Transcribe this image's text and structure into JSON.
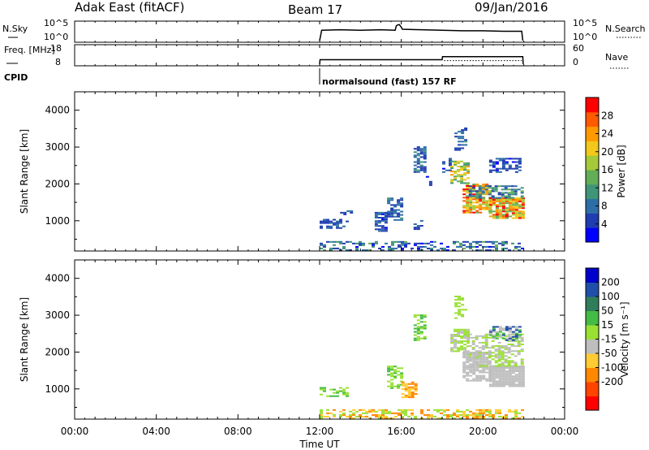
{
  "header": {
    "title": "Adak East (fitACF)",
    "beam": "Beam 17",
    "date": "09/Jan/2016"
  },
  "colors": {
    "background": "#ffffff",
    "axes": "#000000",
    "ground_scatter": "#bebebe"
  },
  "chart_data": [
    {
      "type": "line",
      "panel": "noise",
      "ylabel_left": "N.Sky",
      "ylabel_right": "N.Search",
      "yticks_left": [
        "10^5",
        "10^0"
      ],
      "yticks_right": [
        "10^5",
        "10^0"
      ],
      "x_hours": [
        12.0,
        12.1,
        13.0,
        14.0,
        15.0,
        15.7,
        15.75,
        15.8,
        15.9,
        16.0,
        16.05,
        17.0,
        18.0,
        19.0,
        20.0,
        21.0,
        21.9,
        21.95
      ],
      "y_log": [
        0.0,
        2.0,
        2.1,
        2.0,
        2.1,
        2.0,
        2.8,
        3.0,
        3.1,
        2.6,
        2.2,
        2.1,
        2.0,
        1.9,
        1.9,
        1.8,
        1.8,
        0.0
      ]
    },
    {
      "type": "line",
      "panel": "frequency",
      "ylabel_left": "Freq. [MHz]",
      "ylabel_right": "Nave",
      "yticks_left": [
        "18",
        "8"
      ],
      "yticks_right": [
        "60",
        "0"
      ],
      "freq_x_hours": [
        12.0,
        12.02,
        18.0,
        18.02,
        21.95,
        21.97
      ],
      "freq_mhz": [
        8,
        10.5,
        10.5,
        12.2,
        12.2,
        8
      ],
      "nave_x_hours": [
        18.1,
        21.9
      ],
      "nave": [
        12,
        12
      ]
    },
    {
      "type": "table",
      "panel": "cpid",
      "label": "CPID",
      "start_hour": 12.0,
      "program": "normalsound (fast) 157 RF"
    },
    {
      "type": "heatmap",
      "panel": "power",
      "xlabel": "",
      "ylabel": "Slant Range [km]",
      "xlim": [
        0,
        24
      ],
      "ylim": [
        180,
        4500
      ],
      "yticks": [
        1000,
        2000,
        3000,
        4000
      ],
      "colorbar_label": "Power [dB]",
      "colorbar_ticks": [
        4,
        8,
        12,
        16,
        20,
        24,
        28
      ],
      "colorbar_range": [
        0,
        32
      ],
      "colorbar_colors": [
        "#0000ff",
        "#1f3db0",
        "#2e6ea6",
        "#3f9577",
        "#62ad55",
        "#a6c93a",
        "#f2c81a",
        "#ff9900",
        "#ff5a00",
        "#ff0000"
      ],
      "regions": [
        {
          "t": [
            12.0,
            22.0
          ],
          "r": [
            180,
            420
          ],
          "v": [
            2,
            14
          ],
          "d": 0.45
        },
        {
          "t": [
            12.0,
            13.3
          ],
          "r": [
            780,
            1020
          ],
          "v": [
            3,
            8
          ],
          "d": 0.55
        },
        {
          "t": [
            13.0,
            13.6
          ],
          "r": [
            1150,
            1280
          ],
          "v": [
            3,
            8
          ],
          "d": 0.4
        },
        {
          "t": [
            14.7,
            15.3
          ],
          "r": [
            700,
            1200
          ],
          "v": [
            3,
            9
          ],
          "d": 0.6
        },
        {
          "t": [
            15.3,
            16.0
          ],
          "r": [
            1000,
            1600
          ],
          "v": [
            4,
            10
          ],
          "d": 0.6
        },
        {
          "t": [
            16.6,
            17.0
          ],
          "r": [
            750,
            1000
          ],
          "v": [
            3,
            9
          ],
          "d": 0.55
        },
        {
          "t": [
            16.6,
            17.2
          ],
          "r": [
            2300,
            3000
          ],
          "v": [
            3,
            12
          ],
          "d": 0.55
        },
        {
          "t": [
            17.2,
            17.5
          ],
          "r": [
            1900,
            2200
          ],
          "v": [
            3,
            8
          ],
          "d": 0.4
        },
        {
          "t": [
            18.0,
            18.4
          ],
          "r": [
            2300,
            2700
          ],
          "v": [
            3,
            8
          ],
          "d": 0.5
        },
        {
          "t": [
            18.4,
            19.3
          ],
          "r": [
            2000,
            2600
          ],
          "v": [
            10,
            24
          ],
          "d": 0.65
        },
        {
          "t": [
            19.0,
            20.3
          ],
          "r": [
            1200,
            2000
          ],
          "v": [
            14,
            30
          ],
          "d": 0.75
        },
        {
          "t": [
            20.3,
            22.0
          ],
          "r": [
            1050,
            1600
          ],
          "v": [
            14,
            30
          ],
          "d": 0.85
        },
        {
          "t": [
            19.3,
            22.0
          ],
          "r": [
            1600,
            1950
          ],
          "v": [
            4,
            14
          ],
          "d": 0.55
        },
        {
          "t": [
            18.6,
            19.2
          ],
          "r": [
            2900,
            3500
          ],
          "v": [
            4,
            10
          ],
          "d": 0.4
        },
        {
          "t": [
            20.3,
            21.8
          ],
          "r": [
            2300,
            2700
          ],
          "v": [
            3,
            8
          ],
          "d": 0.5
        }
      ]
    },
    {
      "type": "heatmap",
      "panel": "velocity",
      "xlabel": "Time UT",
      "ylabel": "Slant Range [km]",
      "xlim": [
        0,
        24
      ],
      "ylim": [
        180,
        4500
      ],
      "xticks": [
        "00:00",
        "04:00",
        "08:00",
        "12:00",
        "16:00",
        "20:00",
        "00:00"
      ],
      "yticks": [
        1000,
        2000,
        3000,
        4000
      ],
      "colorbar_label": "Velocity [m s⁻¹]",
      "colorbar_ticks": [
        "200",
        "100",
        "50",
        "15",
        "-15",
        "-50",
        "-100",
        "-200"
      ],
      "colorbar_colors": [
        "#ff0000",
        "#ff4400",
        "#ff8800",
        "#ffcc33",
        "#bebebe",
        "#99e033",
        "#44bb44",
        "#2f7d5a",
        "#1f4fa8",
        "#0000cc"
      ],
      "regions": [
        {
          "t": [
            12.0,
            22.0
          ],
          "r": [
            180,
            420
          ],
          "c": [
            "#ffcc33",
            "#ff8800",
            "#99e033"
          ],
          "d": 0.5
        },
        {
          "t": [
            12.0,
            13.3
          ],
          "r": [
            780,
            1020
          ],
          "c": [
            "#99e033",
            "#44bb44"
          ],
          "d": 0.5
        },
        {
          "t": [
            15.3,
            16.0
          ],
          "r": [
            1000,
            1600
          ],
          "c": [
            "#99e033",
            "#44bb44"
          ],
          "d": 0.5
        },
        {
          "t": [
            16.0,
            16.7
          ],
          "r": [
            750,
            1200
          ],
          "c": [
            "#ffcc33",
            "#ff8800"
          ],
          "d": 0.7
        },
        {
          "t": [
            16.6,
            17.2
          ],
          "r": [
            2300,
            3000
          ],
          "c": [
            "#99e033",
            "#44bb44"
          ],
          "d": 0.5
        },
        {
          "t": [
            18.4,
            19.3
          ],
          "r": [
            2000,
            2600
          ],
          "c": [
            "#99e033",
            "#bebebe"
          ],
          "d": 0.65
        },
        {
          "t": [
            19.0,
            20.3
          ],
          "r": [
            1200,
            2000
          ],
          "c": [
            "#bebebe"
          ],
          "d": 0.8
        },
        {
          "t": [
            20.3,
            22.0
          ],
          "r": [
            1050,
            1600
          ],
          "c": [
            "#bebebe"
          ],
          "d": 0.9
        },
        {
          "t": [
            19.3,
            22.0
          ],
          "r": [
            1600,
            2500
          ],
          "c": [
            "#bebebe",
            "#99e033"
          ],
          "d": 0.55
        },
        {
          "t": [
            18.6,
            19.2
          ],
          "r": [
            2900,
            3500
          ],
          "c": [
            "#99e033"
          ],
          "d": 0.4
        },
        {
          "t": [
            20.3,
            21.8
          ],
          "r": [
            2300,
            2700
          ],
          "c": [
            "#bebebe",
            "#44bb44",
            "#1f4fa8"
          ],
          "d": 0.55
        }
      ]
    }
  ]
}
